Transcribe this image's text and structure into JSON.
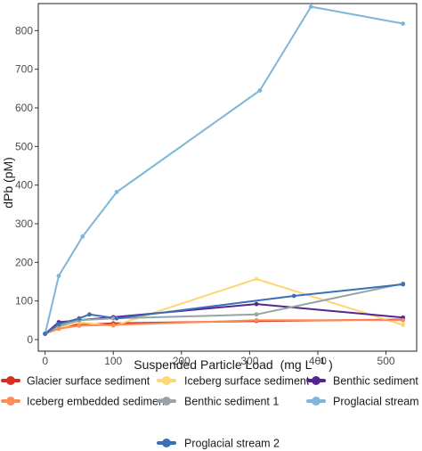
{
  "chart_data": {
    "type": "line",
    "xlabel": "Suspended Particle Load",
    "xlabel_units": "(mg L",
    "xlabel_exp": "−1",
    "xlabel_close": ")",
    "ylabel": "dPb (pM)",
    "xlim": [
      -10,
      545
    ],
    "ylim": [
      -30,
      870
    ],
    "x_ticks": [
      0,
      100,
      200,
      300,
      400,
      500
    ],
    "y_ticks": [
      0,
      100,
      200,
      300,
      400,
      500,
      600,
      700,
      800
    ],
    "grid": false,
    "legend_position": "bottom",
    "series": [
      {
        "name": "Glacier surface sediment",
        "color": "#d7301f",
        "x": [
          0,
          20,
          50,
          100,
          310,
          525
        ],
        "y": [
          15,
          35,
          38,
          42,
          48,
          52
        ]
      },
      {
        "name": "Iceberg surface sediment",
        "color": "#fdd677",
        "x": [
          0,
          20,
          50,
          100,
          310,
          525
        ],
        "y": [
          15,
          30,
          45,
          35,
          157,
          38
        ]
      },
      {
        "name": "Benthic sediment 2",
        "color": "#54278f",
        "x": [
          0,
          20,
          50,
          100,
          310,
          525
        ],
        "y": [
          15,
          45,
          50,
          58,
          92,
          57
        ]
      },
      {
        "name": "Iceberg embedded sediment",
        "color": "#fc8d59",
        "x": [
          0,
          20,
          50,
          100,
          310,
          525
        ],
        "y": [
          15,
          28,
          36,
          38,
          50,
          50
        ]
      },
      {
        "name": "Benthic sediment 1",
        "color": "#95a5a6",
        "x": [
          0,
          20,
          50,
          100,
          310,
          525
        ],
        "y": [
          15,
          35,
          50,
          55,
          65,
          145
        ]
      },
      {
        "name": "Proglacial stream 1",
        "color": "#7eb6d9",
        "x": [
          0,
          20,
          55,
          105,
          315,
          390,
          525
        ],
        "y": [
          15,
          165,
          267,
          382,
          645,
          862,
          818
        ]
      },
      {
        "name": "Proglacial stream 2",
        "color": "#3b6fb6",
        "x": [
          0,
          20,
          50,
          65,
          105,
          365,
          525
        ],
        "y": [
          15,
          40,
          55,
          65,
          55,
          113,
          143
        ]
      }
    ]
  }
}
